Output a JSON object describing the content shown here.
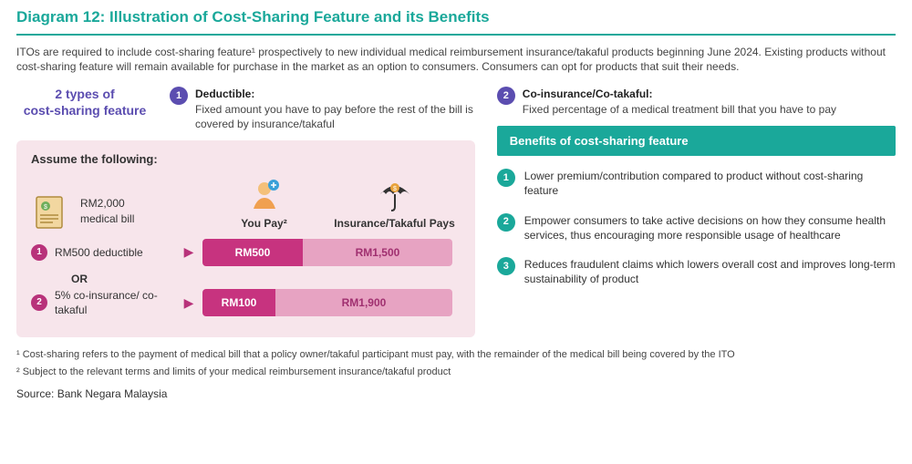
{
  "title": "Diagram 12: Illustration of Cost-Sharing Feature and its Benefits",
  "intro": "ITOs are required to include cost-sharing feature¹ prospectively to new individual medical reimbursement insurance/takaful products beginning June 2024. Existing products without cost-sharing feature will remain available for purchase in the market as an option to consumers. Consumers can opt for products that suit their needs.",
  "types_label_line1": "2 types of",
  "types_label_line2": "cost-sharing feature",
  "definitions": [
    {
      "num": "1",
      "title": "Deductible:",
      "text": "Fixed amount you have to pay before the rest of the bill is covered by insurance/takaful"
    },
    {
      "num": "2",
      "title": "Co-insurance/Co-takaful:",
      "text": "Fixed percentage of a medical treatment bill that you have to pay"
    }
  ],
  "assume_title": "Assume the following:",
  "bill_amount": "RM2,000",
  "bill_label": "medical bill",
  "col_you": "You Pay²",
  "col_ins": "Insurance/Takaful Pays",
  "scenarios": [
    {
      "num": "1",
      "label": "RM500 deductible",
      "you": "RM500",
      "ins": "RM1,500",
      "you_w": 110,
      "ins_w": 164
    },
    {
      "num": "2",
      "label": "5% co-insurance/ co-takaful",
      "you": "RM100",
      "ins": "RM1,900",
      "you_w": 80,
      "ins_w": 194
    }
  ],
  "or_label": "OR",
  "benefits_header": "Benefits of cost-sharing feature",
  "benefits": [
    {
      "num": "1",
      "text": "Lower premium/contribution compared to product without cost-sharing feature"
    },
    {
      "num": "2",
      "text": "Empower consumers to take active decisions on how they consume health services, thus encouraging more responsible usage of healthcare"
    },
    {
      "num": "3",
      "text": "Reduces fraudulent claims which lowers overall cost and improves long-term sustainability of product"
    }
  ],
  "footnote1": "¹  Cost-sharing refers to the payment of medical bill that a policy owner/takaful participant must pay, with the remainder of the medical bill being covered by the ITO",
  "footnote2": "²  Subject to the relevant terms and limits of your medical reimbursement insurance/takaful product",
  "source": "Source: Bank Negara Malaysia",
  "colors": {
    "teal": "#1aa89a",
    "purple": "#5b4db0",
    "magenta_dark": "#c7337f",
    "magenta_light": "#e7a3c2",
    "pinkbox": "#f7e5eb"
  }
}
